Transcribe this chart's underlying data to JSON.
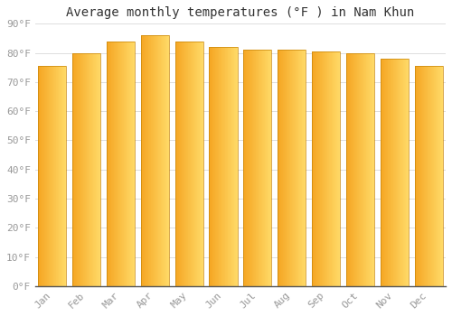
{
  "title": "Average monthly temperatures (°F ) in Nam Khun",
  "months": [
    "Jan",
    "Feb",
    "Mar",
    "Apr",
    "May",
    "Jun",
    "Jul",
    "Aug",
    "Sep",
    "Oct",
    "Nov",
    "Dec"
  ],
  "values": [
    75.5,
    80.0,
    84.0,
    86.0,
    84.0,
    82.0,
    81.0,
    81.0,
    80.5,
    80.0,
    78.0,
    75.5
  ],
  "bar_color_left": "#F5A623",
  "bar_color_right": "#FFD966",
  "background_color": "#FFFFFF",
  "grid_color": "#DDDDDD",
  "ylim": [
    0,
    90
  ],
  "yticks": [
    0,
    10,
    20,
    30,
    40,
    50,
    60,
    70,
    80,
    90
  ],
  "ytick_labels": [
    "0°F",
    "10°F",
    "20°F",
    "30°F",
    "40°F",
    "50°F",
    "60°F",
    "70°F",
    "80°F",
    "90°F"
  ],
  "title_fontsize": 10,
  "tick_fontsize": 8,
  "bar_width": 0.82,
  "title_color": "#333333",
  "tick_color": "#999999",
  "font_family": "monospace"
}
